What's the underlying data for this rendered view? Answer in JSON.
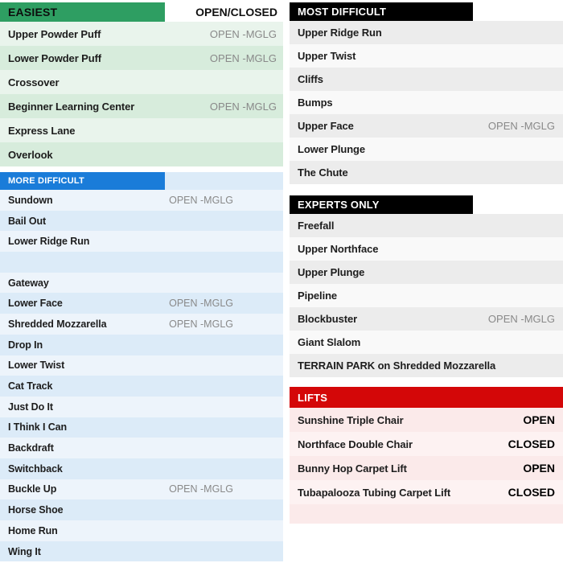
{
  "colors": {
    "easiest_header_bg": "#2e9e62",
    "more_difficult_header_bg": "#1a7cd9",
    "most_difficult_header_bg": "#000000",
    "experts_only_header_bg": "#000000",
    "lifts_header_bg": "#d40708",
    "status_text": "#898989"
  },
  "left": {
    "easiest": {
      "header": "EASIEST",
      "status_column_header": "OPEN/CLOSED",
      "rows": [
        {
          "name": "Upper Powder Puff",
          "status": "OPEN -MGLG"
        },
        {
          "name": "Lower Powder Puff",
          "status": "OPEN -MGLG"
        },
        {
          "name": "Crossover",
          "status": ""
        },
        {
          "name": "Beginner Learning Center",
          "status": "OPEN -MGLG"
        },
        {
          "name": "Express Lane",
          "status": ""
        },
        {
          "name": "Overlook",
          "status": ""
        }
      ]
    },
    "more_difficult": {
      "header": "MORE DIFFICULT",
      "rows": [
        {
          "name": "Sundown",
          "status": "OPEN -MGLG"
        },
        {
          "name": "Bail Out",
          "status": ""
        },
        {
          "name": "Lower Ridge Run",
          "status": ""
        },
        {
          "name": "",
          "status": ""
        },
        {
          "name": "Gateway",
          "status": ""
        },
        {
          "name": "Lower Face",
          "status": "OPEN -MGLG"
        },
        {
          "name": "Shredded Mozzarella",
          "status": "OPEN -MGLG"
        },
        {
          "name": "Drop In",
          "status": ""
        },
        {
          "name": "Lower Twist",
          "status": ""
        },
        {
          "name": "Cat Track",
          "status": ""
        },
        {
          "name": "Just Do It",
          "status": ""
        },
        {
          "name": "I Think I Can",
          "status": ""
        },
        {
          "name": "Backdraft",
          "status": ""
        },
        {
          "name": "Switchback",
          "status": ""
        },
        {
          "name": "Buckle Up",
          "status": "OPEN -MGLG"
        },
        {
          "name": "Horse Shoe",
          "status": ""
        },
        {
          "name": "Home Run",
          "status": ""
        },
        {
          "name": "Wing It",
          "status": ""
        }
      ]
    }
  },
  "right": {
    "most_difficult": {
      "header": "MOST DIFFICULT",
      "rows": [
        {
          "name": "Upper Ridge Run",
          "status": ""
        },
        {
          "name": "Upper Twist",
          "status": ""
        },
        {
          "name": "Cliffs",
          "status": ""
        },
        {
          "name": "Bumps",
          "status": ""
        },
        {
          "name": "Upper Face",
          "status": "OPEN -MGLG"
        },
        {
          "name": "Lower Plunge",
          "status": ""
        },
        {
          "name": "The Chute",
          "status": ""
        }
      ]
    },
    "experts_only": {
      "header": "EXPERTS ONLY",
      "rows": [
        {
          "name": "Freefall",
          "status": ""
        },
        {
          "name": "Upper Northface",
          "status": ""
        },
        {
          "name": "Upper Plunge",
          "status": ""
        },
        {
          "name": "Pipeline",
          "status": ""
        },
        {
          "name": "Blockbuster",
          "status": "OPEN -MGLG"
        },
        {
          "name": "Giant Slalom",
          "status": ""
        },
        {
          "name": "TERRAIN PARK on Shredded Mozzarella",
          "status": ""
        }
      ]
    },
    "lifts": {
      "header": "LIFTS",
      "rows": [
        {
          "name": "Sunshine Triple Chair",
          "status": "OPEN"
        },
        {
          "name": "Northface Double Chair",
          "status": "CLOSED"
        },
        {
          "name": "Bunny Hop Carpet Lift",
          "status": "OPEN"
        },
        {
          "name": "Tubapalooza Tubing Carpet Lift",
          "status": "CLOSED"
        }
      ]
    }
  }
}
